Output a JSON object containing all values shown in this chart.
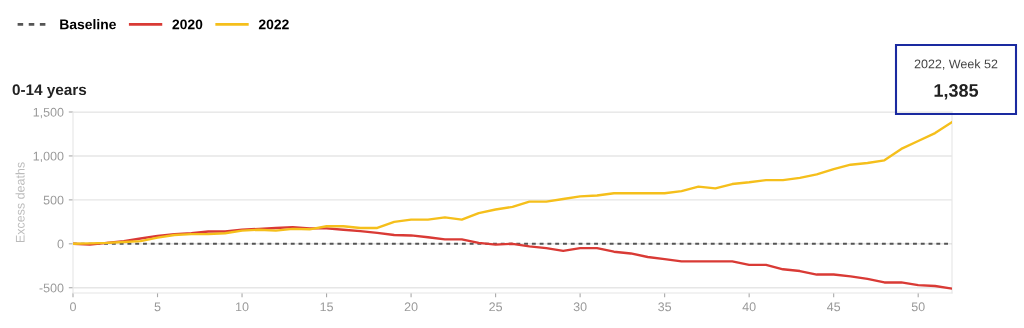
{
  "chart_data": {
    "type": "line",
    "title": "0-14 years",
    "ylabel": "Excess deaths",
    "x": [
      0,
      1,
      2,
      3,
      4,
      5,
      6,
      7,
      8,
      9,
      10,
      11,
      12,
      13,
      14,
      15,
      16,
      17,
      18,
      19,
      20,
      21,
      22,
      23,
      24,
      25,
      26,
      27,
      28,
      29,
      30,
      31,
      32,
      33,
      34,
      35,
      36,
      37,
      38,
      39,
      40,
      41,
      42,
      43,
      44,
      45,
      46,
      47,
      48,
      49,
      50,
      51,
      52
    ],
    "series": [
      {
        "name": "Baseline",
        "color": "#555555",
        "line_style": "dotted",
        "x": [
          0,
          52
        ],
        "values": [
          0,
          0
        ]
      },
      {
        "name": "2020",
        "color": "#d93a35",
        "values": [
          0,
          -10,
          10,
          30,
          60,
          90,
          110,
          120,
          140,
          140,
          160,
          170,
          180,
          190,
          175,
          175,
          160,
          145,
          125,
          100,
          95,
          75,
          50,
          50,
          10,
          -10,
          0,
          -30,
          -50,
          -80,
          -50,
          -50,
          -90,
          -110,
          -150,
          -175,
          -200,
          -200,
          -200,
          -200,
          -240,
          -240,
          -290,
          -310,
          -350,
          -350,
          -370,
          -400,
          -440,
          -440,
          -470,
          -480,
          -510
        ]
      },
      {
        "name": "2022",
        "color": "#f5bf1b",
        "values": [
          0,
          5,
          10,
          20,
          30,
          70,
          100,
          110,
          110,
          120,
          150,
          160,
          150,
          170,
          165,
          200,
          200,
          180,
          180,
          250,
          275,
          275,
          300,
          275,
          350,
          390,
          420,
          480,
          480,
          510,
          540,
          550,
          575,
          575,
          575,
          575,
          600,
          650,
          630,
          680,
          700,
          725,
          725,
          750,
          790,
          850,
          900,
          920,
          950,
          1080,
          1170,
          1260,
          1385
        ]
      }
    ],
    "xlim": [
      0,
      52
    ],
    "xticks": [
      0,
      5,
      10,
      15,
      20,
      25,
      30,
      35,
      40,
      45,
      50
    ],
    "ylim": [
      -560,
      1500
    ],
    "yticks": [
      {
        "value": -500,
        "label": "-500"
      },
      0,
      500,
      {
        "value": 1000,
        "label": "1,000"
      },
      {
        "value": 1500,
        "label": "1,500"
      }
    ],
    "grid": "y",
    "legend": "top left",
    "line_style": "solid",
    "annotations": [
      "2022, Week 52",
      "1,385"
    ]
  }
}
